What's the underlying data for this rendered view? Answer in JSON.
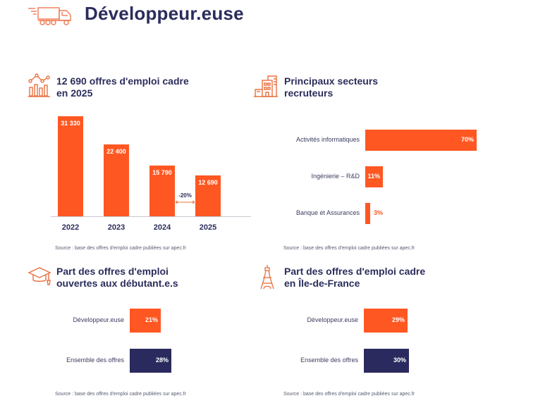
{
  "header": {
    "title": "Développeur.euse",
    "icon": "truck-icon"
  },
  "colors": {
    "accent": "#ff5722",
    "navy": "#2b2d5c",
    "navy_bar": "#2a2a5e",
    "axis": "#c8c8d0"
  },
  "sections": {
    "offers": {
      "icon": "chart-growth-icon",
      "title_line1": "12 690 offres d'emploi cadre",
      "title_line2": "en 2025",
      "source": "Source : base des offres d'emploi cadre publiées sur apec.fr"
    },
    "sectors": {
      "icon": "buildings-icon",
      "title_line1": "Principaux secteurs",
      "title_line2": "recruteurs",
      "source": "Source : base des offres d'emploi cadre publiées sur apec.fr"
    },
    "debutants": {
      "icon": "graduation-cap-icon",
      "title_line1": "Part des offres d'emploi",
      "title_line2": "ouvertes aux débutant.e.s",
      "source": "Source : base des offres d'emploi cadre publiées sur apec.fr"
    },
    "idf": {
      "icon": "eiffel-tower-icon",
      "title_line1": "Part des offres d'emploi cadre",
      "title_line2": "en Île-de-France",
      "source": "Source : base des offres d'emploi cadre publiées sur apec.fr"
    }
  },
  "chart_data": [
    {
      "type": "bar",
      "title": "12 690 offres d'emploi cadre en 2025",
      "categories": [
        "2022",
        "2023",
        "2024",
        "2025"
      ],
      "values": [
        31330,
        22400,
        15790,
        12690
      ],
      "value_labels": [
        "31 330",
        "22 400",
        "15 790",
        "12 690"
      ],
      "annotation": {
        "text": "-20%",
        "between": [
          "2024",
          "2025"
        ]
      },
      "ylim": [
        0,
        31330
      ],
      "grid": false,
      "xlabel": "",
      "ylabel": ""
    },
    {
      "type": "bar",
      "orientation": "horizontal",
      "title": "Principaux secteurs recruteurs",
      "categories": [
        "Activités informatiques",
        "Ingénierie – R&D",
        "Banque et Assurances"
      ],
      "values": [
        70,
        11,
        3
      ],
      "value_labels": [
        "70%",
        "11%",
        "3%"
      ],
      "unit": "%"
    },
    {
      "type": "bar",
      "orientation": "horizontal",
      "title": "Part des offres d'emploi ouvertes aux débutant.e.s",
      "categories": [
        "Développeur.euse",
        "Ensemble des offres"
      ],
      "values": [
        21,
        28
      ],
      "value_labels": [
        "21%",
        "28%"
      ],
      "unit": "%"
    },
    {
      "type": "bar",
      "orientation": "horizontal",
      "title": "Part des offres d'emploi cadre en Île-de-France",
      "categories": [
        "Développeur.euse",
        "Ensemble des offres"
      ],
      "values": [
        29,
        30
      ],
      "value_labels": [
        "29%",
        "30%"
      ],
      "unit": "%"
    }
  ]
}
